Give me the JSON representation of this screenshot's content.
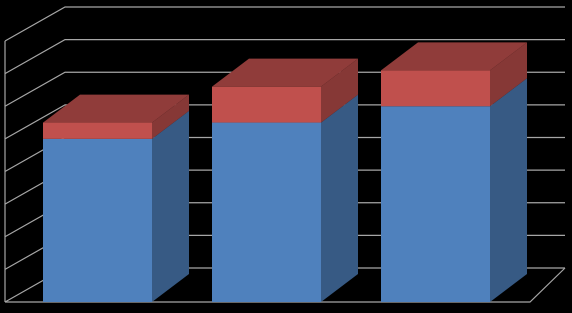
{
  "chart_data": {
    "type": "bar3d-stacked",
    "categories": [
      null,
      null,
      null
    ],
    "series": [
      {
        "color": "#4f81bd",
        "values": [
          5,
          5.5,
          6
        ]
      },
      {
        "color": "#c0504d",
        "values": [
          0.5,
          1.1,
          1.1
        ]
      }
    ],
    "ylim": [
      0,
      8
    ],
    "yticks": [
      0,
      1,
      2,
      3,
      4,
      5,
      6,
      7,
      8
    ],
    "grid": true
  }
}
